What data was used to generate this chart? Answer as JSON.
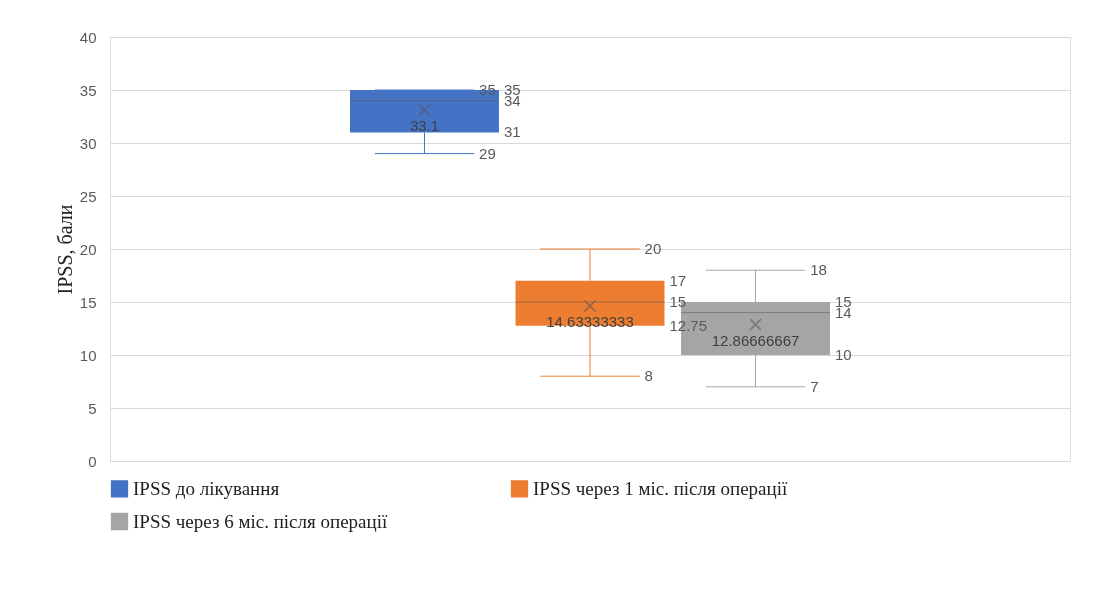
{
  "chart_data": {
    "type": "box",
    "ylabel": "IPSS, бали",
    "categories": [
      null
    ],
    "series": [
      {
        "name": "IPSS до лікування",
        "color": "#4472c4",
        "boxes": [
          {
            "low": 29,
            "q1": 31,
            "median": 34,
            "q3": 35,
            "high": 35,
            "mean": 33.1
          }
        ]
      },
      {
        "name": "IPSS через 1 міс. після операції",
        "color": "#ed7d31",
        "boxes": [
          {
            "low": 8,
            "q1": 12.75,
            "median": 15,
            "q3": 17,
            "high": 20,
            "mean": 14.63333333
          }
        ]
      },
      {
        "name": "IPSS через 6 міс. після операції",
        "color": "#a5a5a5",
        "boxes": [
          {
            "low": 7,
            "q1": 10,
            "median": 14,
            "q3": 15,
            "high": 18,
            "mean": 12.86666667
          }
        ]
      }
    ],
    "annotations": [
      "29",
      "31",
      "34",
      "35",
      "35",
      "33.1",
      "8",
      "12.75",
      "15",
      "17",
      "20",
      "14.63333333",
      "7",
      "10",
      "14",
      "15",
      "18",
      "12.86666667"
    ],
    "data_labels": true,
    "ylim": [
      0,
      40
    ],
    "yticks": [
      0,
      5,
      10,
      15,
      20,
      25,
      30,
      35,
      40
    ],
    "grid": "y",
    "legend": "bottom",
    "marker": "cross"
  }
}
